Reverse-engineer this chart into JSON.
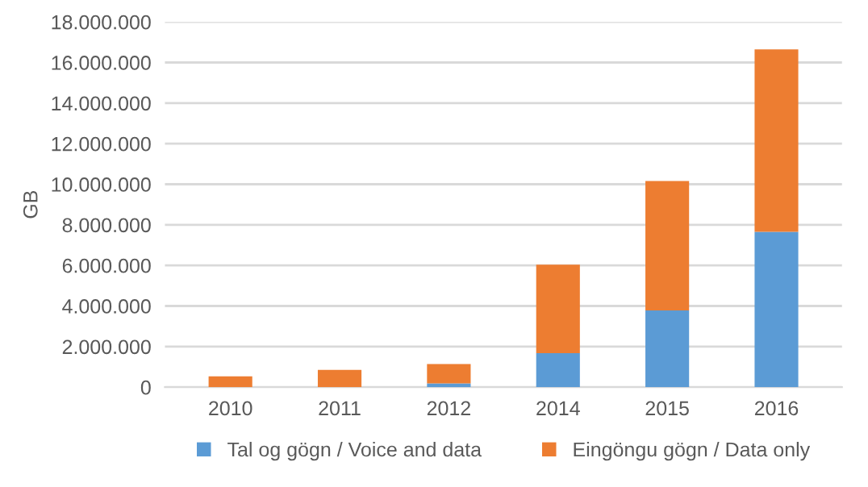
{
  "chart_data": {
    "type": "bar",
    "stacked": true,
    "ylabel": "GB",
    "categories": [
      "2010",
      "2011",
      "2012",
      "2014",
      "2015",
      "2016"
    ],
    "series": [
      {
        "name": "Tal og gögn / Voice and data",
        "color": "#5b9bd5",
        "values": [
          0,
          0,
          190000,
          1680000,
          3780000,
          7660000
        ]
      },
      {
        "name": "Eingöngu gögn / Data only",
        "color": "#ed7d31",
        "values": [
          530000,
          850000,
          950000,
          4360000,
          6380000,
          8990000
        ]
      }
    ],
    "ylim": [
      0,
      18000000
    ],
    "yticks": [
      {
        "value": 0,
        "label": "0"
      },
      {
        "value": 2000000,
        "label": "2.000.000"
      },
      {
        "value": 4000000,
        "label": "4.000.000"
      },
      {
        "value": 6000000,
        "label": "6.000.000"
      },
      {
        "value": 8000000,
        "label": "8.000.000"
      },
      {
        "value": 10000000,
        "label": "10.000.000"
      },
      {
        "value": 12000000,
        "label": "12.000.000"
      },
      {
        "value": 14000000,
        "label": "14.000.000"
      },
      {
        "value": 16000000,
        "label": "16.000.000"
      },
      {
        "value": 18000000,
        "label": "18.000.000"
      }
    ],
    "grid": "y",
    "legend": "bottom"
  }
}
